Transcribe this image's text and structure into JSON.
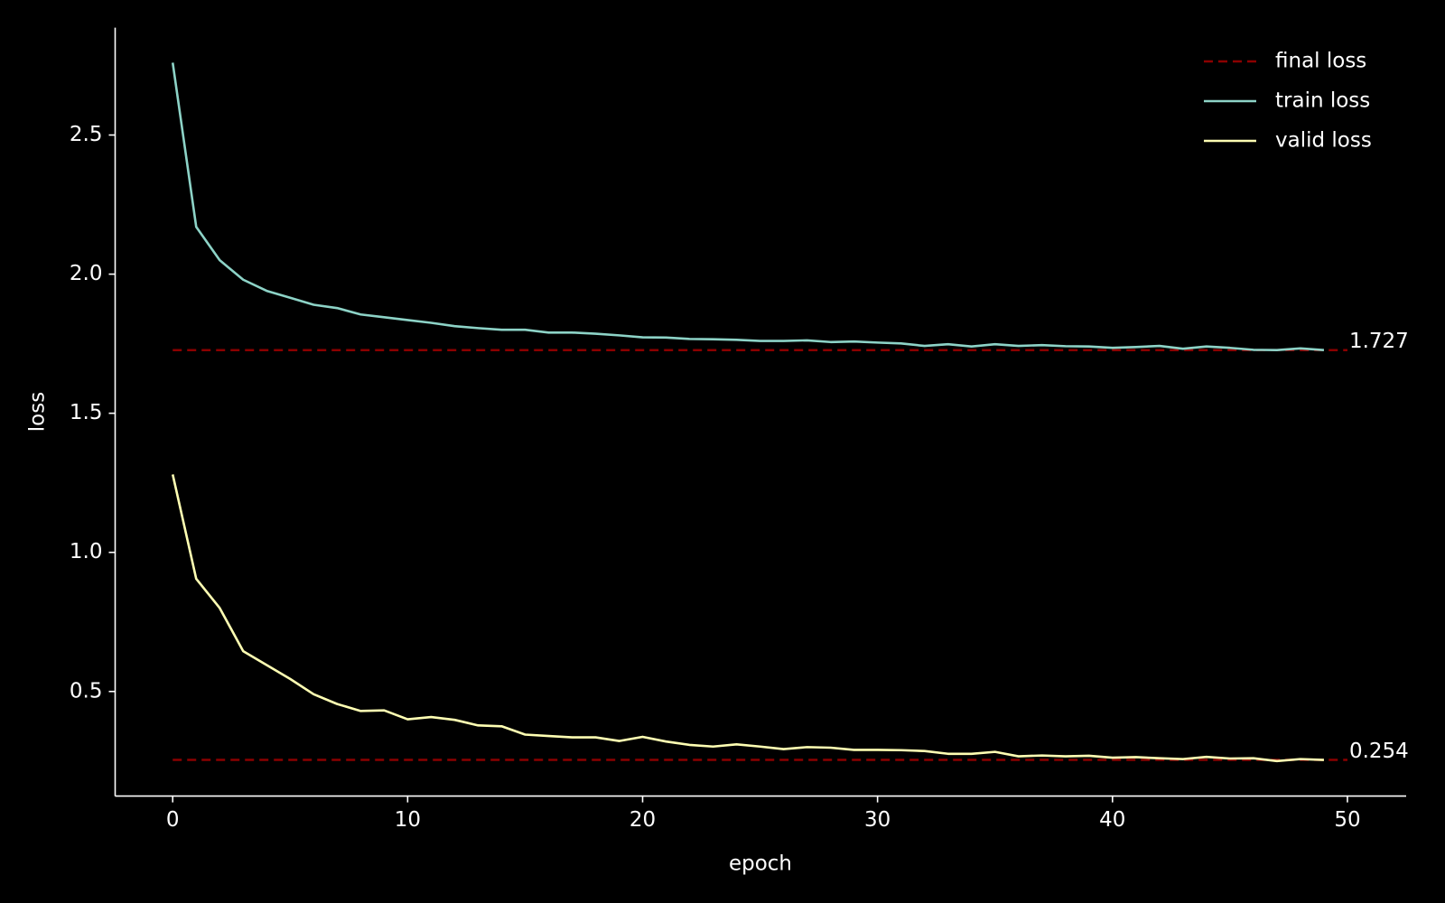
{
  "chart_data": {
    "type": "line",
    "xlabel": "epoch",
    "ylabel": "loss",
    "x": [
      0,
      1,
      2,
      3,
      4,
      5,
      6,
      7,
      8,
      9,
      10,
      11,
      12,
      13,
      14,
      15,
      16,
      17,
      18,
      19,
      20,
      21,
      22,
      23,
      24,
      25,
      26,
      27,
      28,
      29,
      30,
      31,
      32,
      33,
      34,
      35,
      36,
      37,
      38,
      39,
      40,
      41,
      42,
      43,
      44,
      45,
      46,
      47,
      48,
      49
    ],
    "series": [
      {
        "name": "train loss",
        "color": "#8dd3c7",
        "values": [
          2.76,
          2.17,
          2.05,
          1.98,
          1.94,
          1.915,
          1.89,
          1.878,
          1.855,
          1.845,
          1.835,
          1.825,
          1.813,
          1.806,
          1.8,
          1.8,
          1.79,
          1.79,
          1.786,
          1.78,
          1.773,
          1.772,
          1.767,
          1.766,
          1.764,
          1.76,
          1.76,
          1.762,
          1.756,
          1.758,
          1.754,
          1.751,
          1.742,
          1.748,
          1.74,
          1.748,
          1.742,
          1.745,
          1.741,
          1.74,
          1.735,
          1.738,
          1.742,
          1.732,
          1.74,
          1.735,
          1.728,
          1.727,
          1.733,
          1.727
        ]
      },
      {
        "name": "valid loss",
        "color": "#ffffb3",
        "values": [
          1.28,
          0.905,
          0.8,
          0.645,
          0.595,
          0.545,
          0.49,
          0.455,
          0.43,
          0.432,
          0.4,
          0.408,
          0.398,
          0.378,
          0.375,
          0.345,
          0.34,
          0.335,
          0.335,
          0.322,
          0.337,
          0.32,
          0.308,
          0.302,
          0.31,
          0.302,
          0.293,
          0.3,
          0.298,
          0.29,
          0.29,
          0.289,
          0.286,
          0.276,
          0.276,
          0.283,
          0.267,
          0.27,
          0.267,
          0.269,
          0.262,
          0.264,
          0.26,
          0.257,
          0.265,
          0.259,
          0.26,
          0.25,
          0.257,
          0.254
        ]
      }
    ],
    "reference_lines": {
      "name": "final loss",
      "color": "#8b0000",
      "values": [
        1.727,
        0.254
      ],
      "xrange": [
        0,
        50
      ]
    },
    "xlim": [
      -2.45,
      52.5
    ],
    "xticks": [
      0,
      10,
      20,
      30,
      40,
      50
    ],
    "ylim": [
      0.124,
      2.886
    ],
    "yticks": [
      0.5,
      {
        "value": 1,
        "label": "1.0"
      },
      1.5,
      {
        "value": 2,
        "label": "2.0"
      },
      2.5
    ],
    "legend": "upper right",
    "grid": false
  }
}
